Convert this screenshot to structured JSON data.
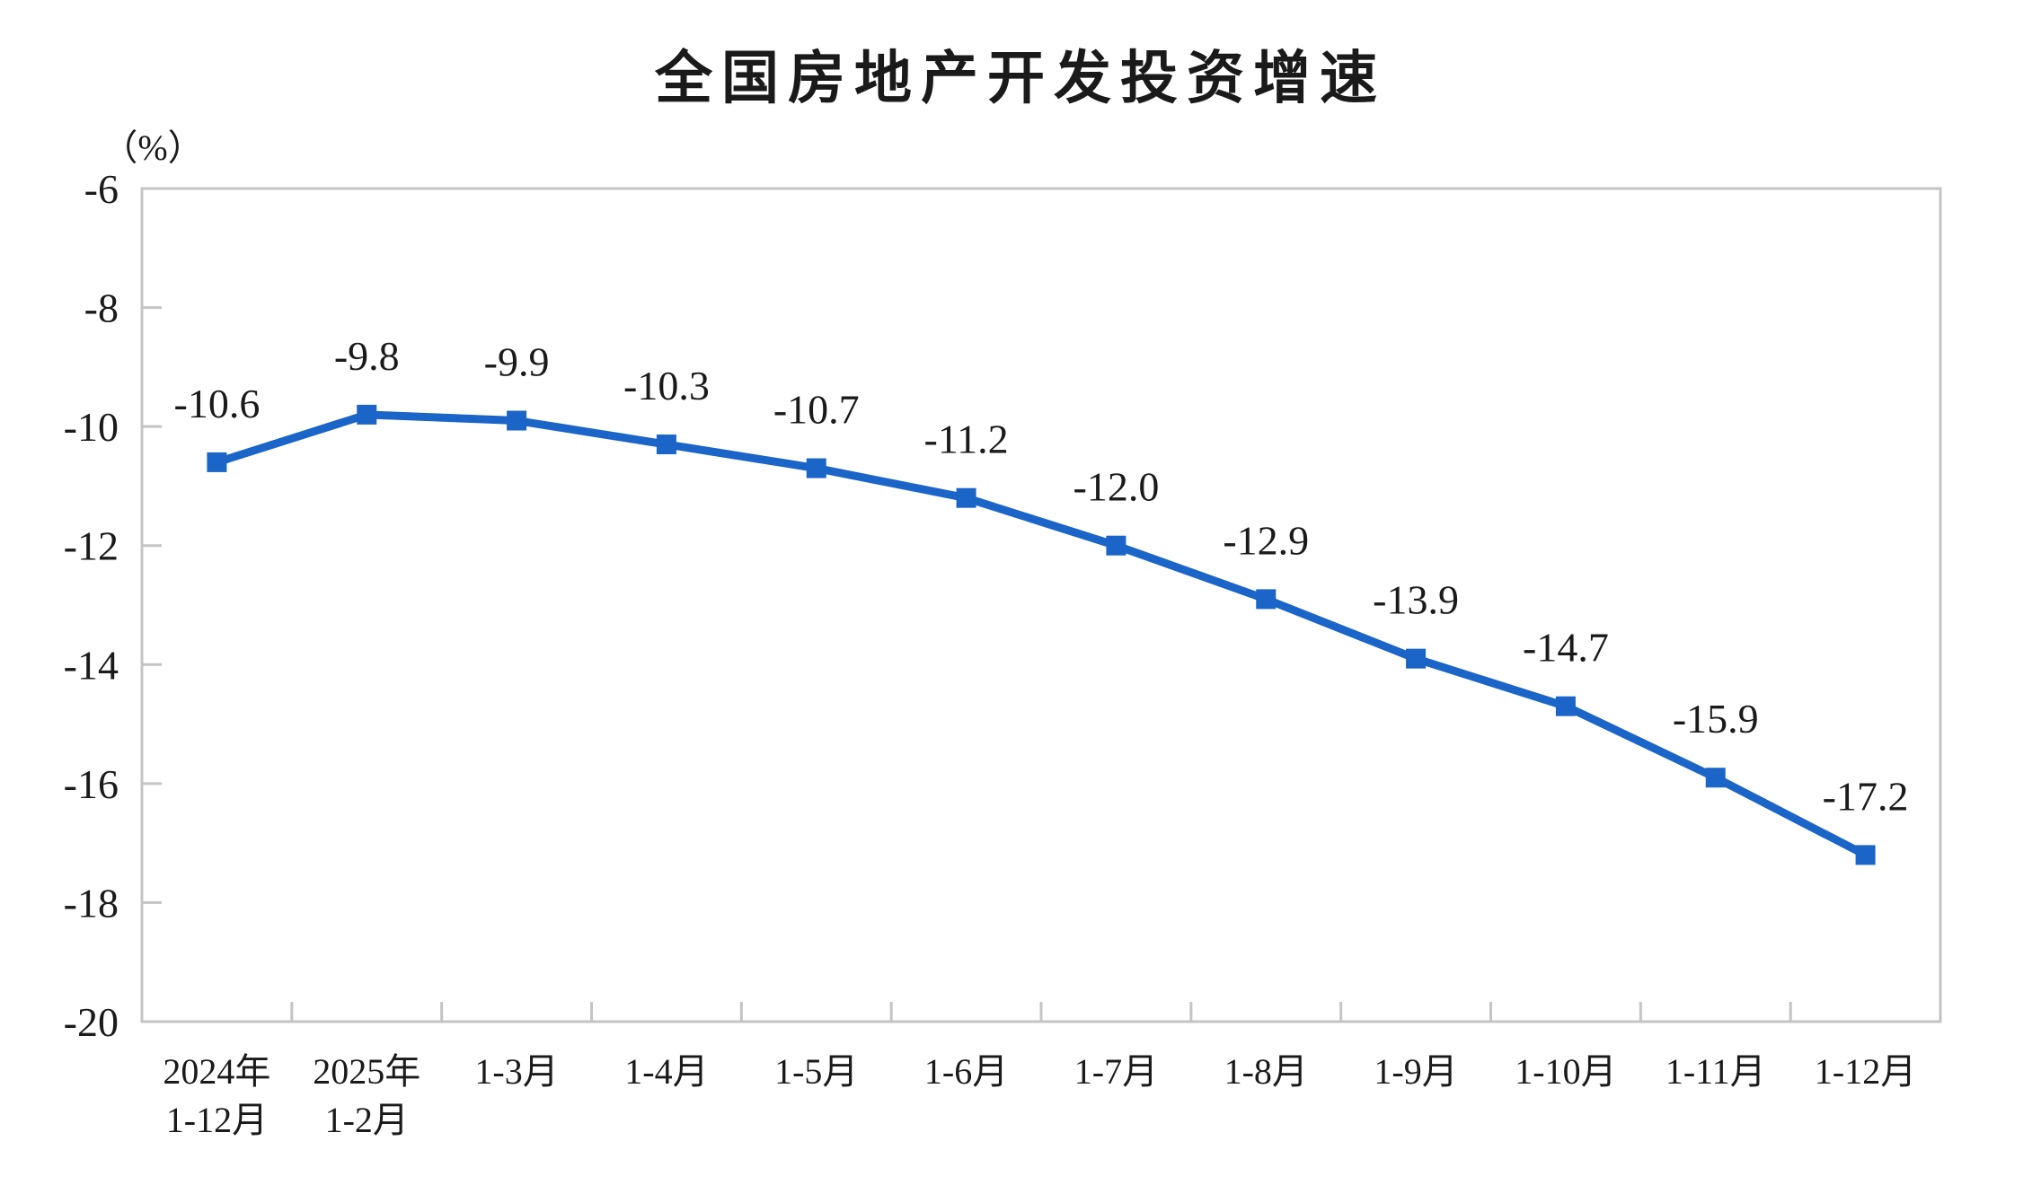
{
  "page": {
    "background_color": "#ffffff"
  },
  "chart_data": {
    "type": "line",
    "title": "全国房地产开发投资增速",
    "ylabel": "（%）",
    "xlabel": "",
    "categories": [
      "2024年\n1-12月",
      "2025年\n1-2月",
      "1-3月",
      "1-4月",
      "1-5月",
      "1-6月",
      "1-7月",
      "1-8月",
      "1-9月",
      "1-10月",
      "1-11月",
      "1-12月"
    ],
    "series": [
      {
        "name": "全国房地产开发投资增速",
        "values": [
          -10.6,
          -9.8,
          -9.9,
          -10.3,
          -10.7,
          -11.2,
          -12.0,
          -12.9,
          -13.9,
          -14.7,
          -15.9,
          -17.2
        ]
      }
    ],
    "data_labels": [
      "-10.6",
      "-9.8",
      "-9.9",
      "-10.3",
      "-10.7",
      "-11.2",
      "-12.0",
      "-12.9",
      "-13.9",
      "-14.7",
      "-15.9",
      "-17.2"
    ],
    "ylim": [
      -20,
      -6
    ],
    "yticks": [
      -6,
      -8,
      -10,
      -12,
      -14,
      -16,
      -18,
      -20
    ],
    "grid": false,
    "legend": "none",
    "marker": "square",
    "line_color": "#1B64C8",
    "axis_color": "#C4C4C4",
    "text_color": "#1A1A1A"
  }
}
